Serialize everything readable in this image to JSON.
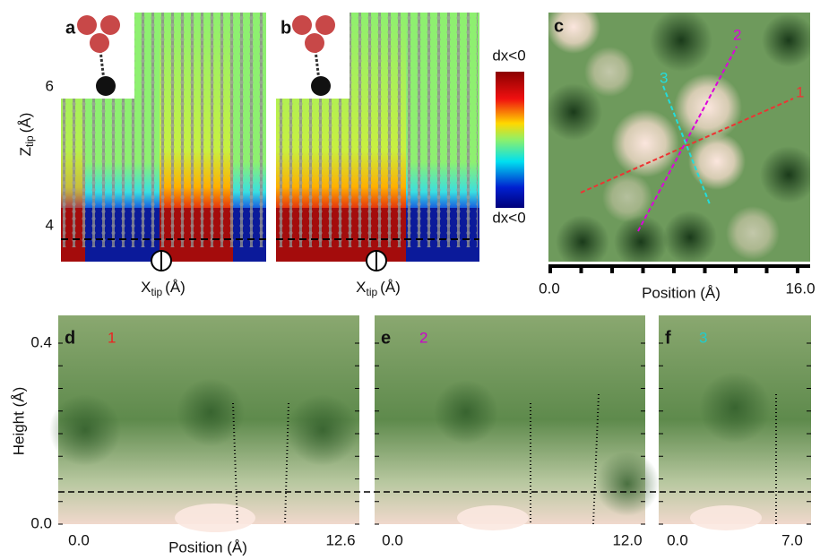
{
  "panels": {
    "a": {
      "label": "a"
    },
    "b": {
      "label": "b"
    },
    "c": {
      "label": "c",
      "lines": [
        "1",
        "2",
        "3"
      ],
      "x_ticks": [
        "0.0",
        "16.0"
      ],
      "x_axis": "Position (Å)"
    },
    "d": {
      "label": "d",
      "line": "1",
      "x_ticks": [
        "0.0",
        "12.6"
      ],
      "x_axis": "Position (Å)"
    },
    "e": {
      "label": "e",
      "line": "2",
      "x_ticks": [
        "0.0",
        "12.0"
      ]
    },
    "f": {
      "label": "f",
      "line": "3",
      "x_ticks": [
        "0.0",
        "7.0"
      ]
    }
  },
  "tip_axes": {
    "y_main": "Z",
    "y_sub": "tip",
    "y_unit": "(Å)",
    "y_ticks": [
      "6",
      "4"
    ],
    "x_main": "X",
    "x_sub": "tip",
    "x_unit": "(Å)"
  },
  "colorbar": {
    "top": "dx<0",
    "bottom": "dx<0"
  },
  "height_axis": {
    "label": "Height (Å)",
    "ticks": [
      "0.4",
      "0.0"
    ]
  }
}
